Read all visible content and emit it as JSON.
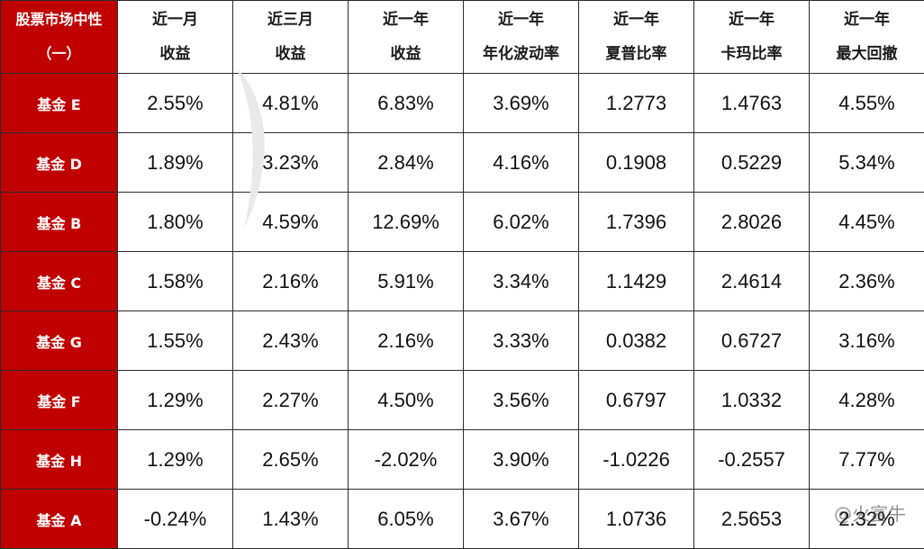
{
  "table": {
    "corner_header": [
      "股票市场中性",
      "（一）"
    ],
    "columns": [
      [
        "近一月",
        "收益"
      ],
      [
        "近三月",
        "收益"
      ],
      [
        "近一年",
        "收益"
      ],
      [
        "近一年",
        "年化波动率"
      ],
      [
        "近一年",
        "夏普比率"
      ],
      [
        "近一年",
        "卡玛比率"
      ],
      [
        "近一年",
        "最大回撤"
      ]
    ],
    "rows": [
      {
        "name": "基金 E",
        "values": [
          "2.55%",
          "4.81%",
          "6.83%",
          "3.69%",
          "1.2773",
          "1.4763",
          "4.55%"
        ]
      },
      {
        "name": "基金 D",
        "values": [
          "1.89%",
          "3.23%",
          "2.84%",
          "4.16%",
          "0.1908",
          "0.5229",
          "5.34%"
        ]
      },
      {
        "name": "基金 B",
        "values": [
          "1.80%",
          "4.59%",
          "12.69%",
          "6.02%",
          "1.7396",
          "2.8026",
          "4.45%"
        ]
      },
      {
        "name": "基金 C",
        "values": [
          "1.58%",
          "2.16%",
          "5.91%",
          "3.34%",
          "1.1429",
          "2.4614",
          "2.36%"
        ]
      },
      {
        "name": "基金 G",
        "values": [
          "1.55%",
          "2.43%",
          "2.16%",
          "3.33%",
          "0.0382",
          "0.6727",
          "3.16%"
        ]
      },
      {
        "name": "基金 F",
        "values": [
          "1.29%",
          "2.27%",
          "4.50%",
          "3.56%",
          "0.6797",
          "1.0332",
          "4.28%"
        ]
      },
      {
        "name": "基金 H",
        "values": [
          "1.29%",
          "2.65%",
          "-2.02%",
          "3.90%",
          "-1.0226",
          "-0.2557",
          "7.77%"
        ]
      },
      {
        "name": "基金 A",
        "values": [
          "-0.24%",
          "1.43%",
          "6.05%",
          "3.67%",
          "1.0736",
          "2.5653",
          "2.32%"
        ]
      }
    ]
  },
  "watermark": {
    "brand": "@火富牛"
  },
  "colors": {
    "header_red": "#c00000",
    "border": "#2b2b2b"
  }
}
